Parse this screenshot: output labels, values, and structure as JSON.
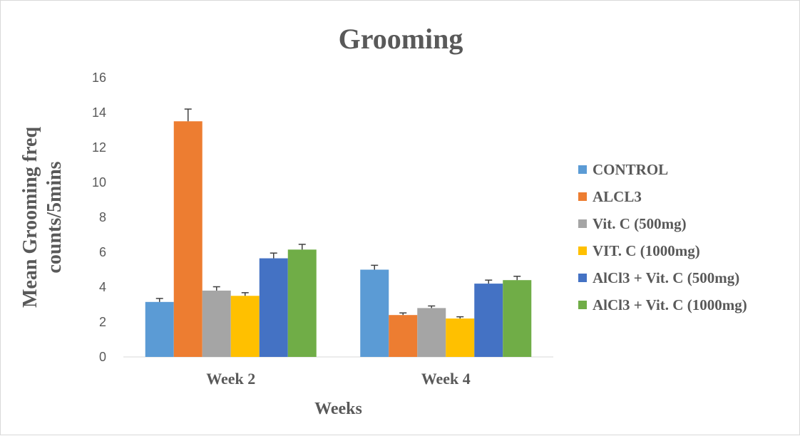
{
  "chart_data": {
    "type": "bar",
    "title": "Grooming",
    "xlabel": "Weeks",
    "ylabel_lines": [
      "Mean Grooming freq",
      "counts/5mins"
    ],
    "ylim": [
      0,
      16
    ],
    "yticks": [
      0,
      2,
      4,
      6,
      8,
      10,
      12,
      14,
      16
    ],
    "grid": false,
    "legend_position": "right",
    "error_bars": true,
    "categories": [
      "Week 2",
      "Week 4"
    ],
    "series": [
      {
        "name": "CONTROL",
        "color": "#5B9BD5",
        "values": [
          3.15,
          5.0
        ],
        "errors": [
          0.2,
          0.25
        ]
      },
      {
        "name": "ALCL3",
        "color": "#ED7D31",
        "values": [
          13.5,
          2.4
        ],
        "errors": [
          0.7,
          0.12
        ]
      },
      {
        "name": "Vit. C (500mg)",
        "color": "#A5A5A5",
        "values": [
          3.8,
          2.8
        ],
        "errors": [
          0.22,
          0.12
        ]
      },
      {
        "name": "VIT. C (1000mg)",
        "color": "#FFC000",
        "values": [
          3.5,
          2.2
        ],
        "errors": [
          0.18,
          0.1
        ]
      },
      {
        "name": "AlCl3 + Vit. C (500mg)",
        "color": "#4472C4",
        "values": [
          5.65,
          4.2
        ],
        "errors": [
          0.3,
          0.2
        ]
      },
      {
        "name": "AlCl3 + Vit. C (1000mg)",
        "color": "#70AD47",
        "values": [
          6.15,
          4.4
        ],
        "errors": [
          0.3,
          0.22
        ]
      }
    ]
  }
}
